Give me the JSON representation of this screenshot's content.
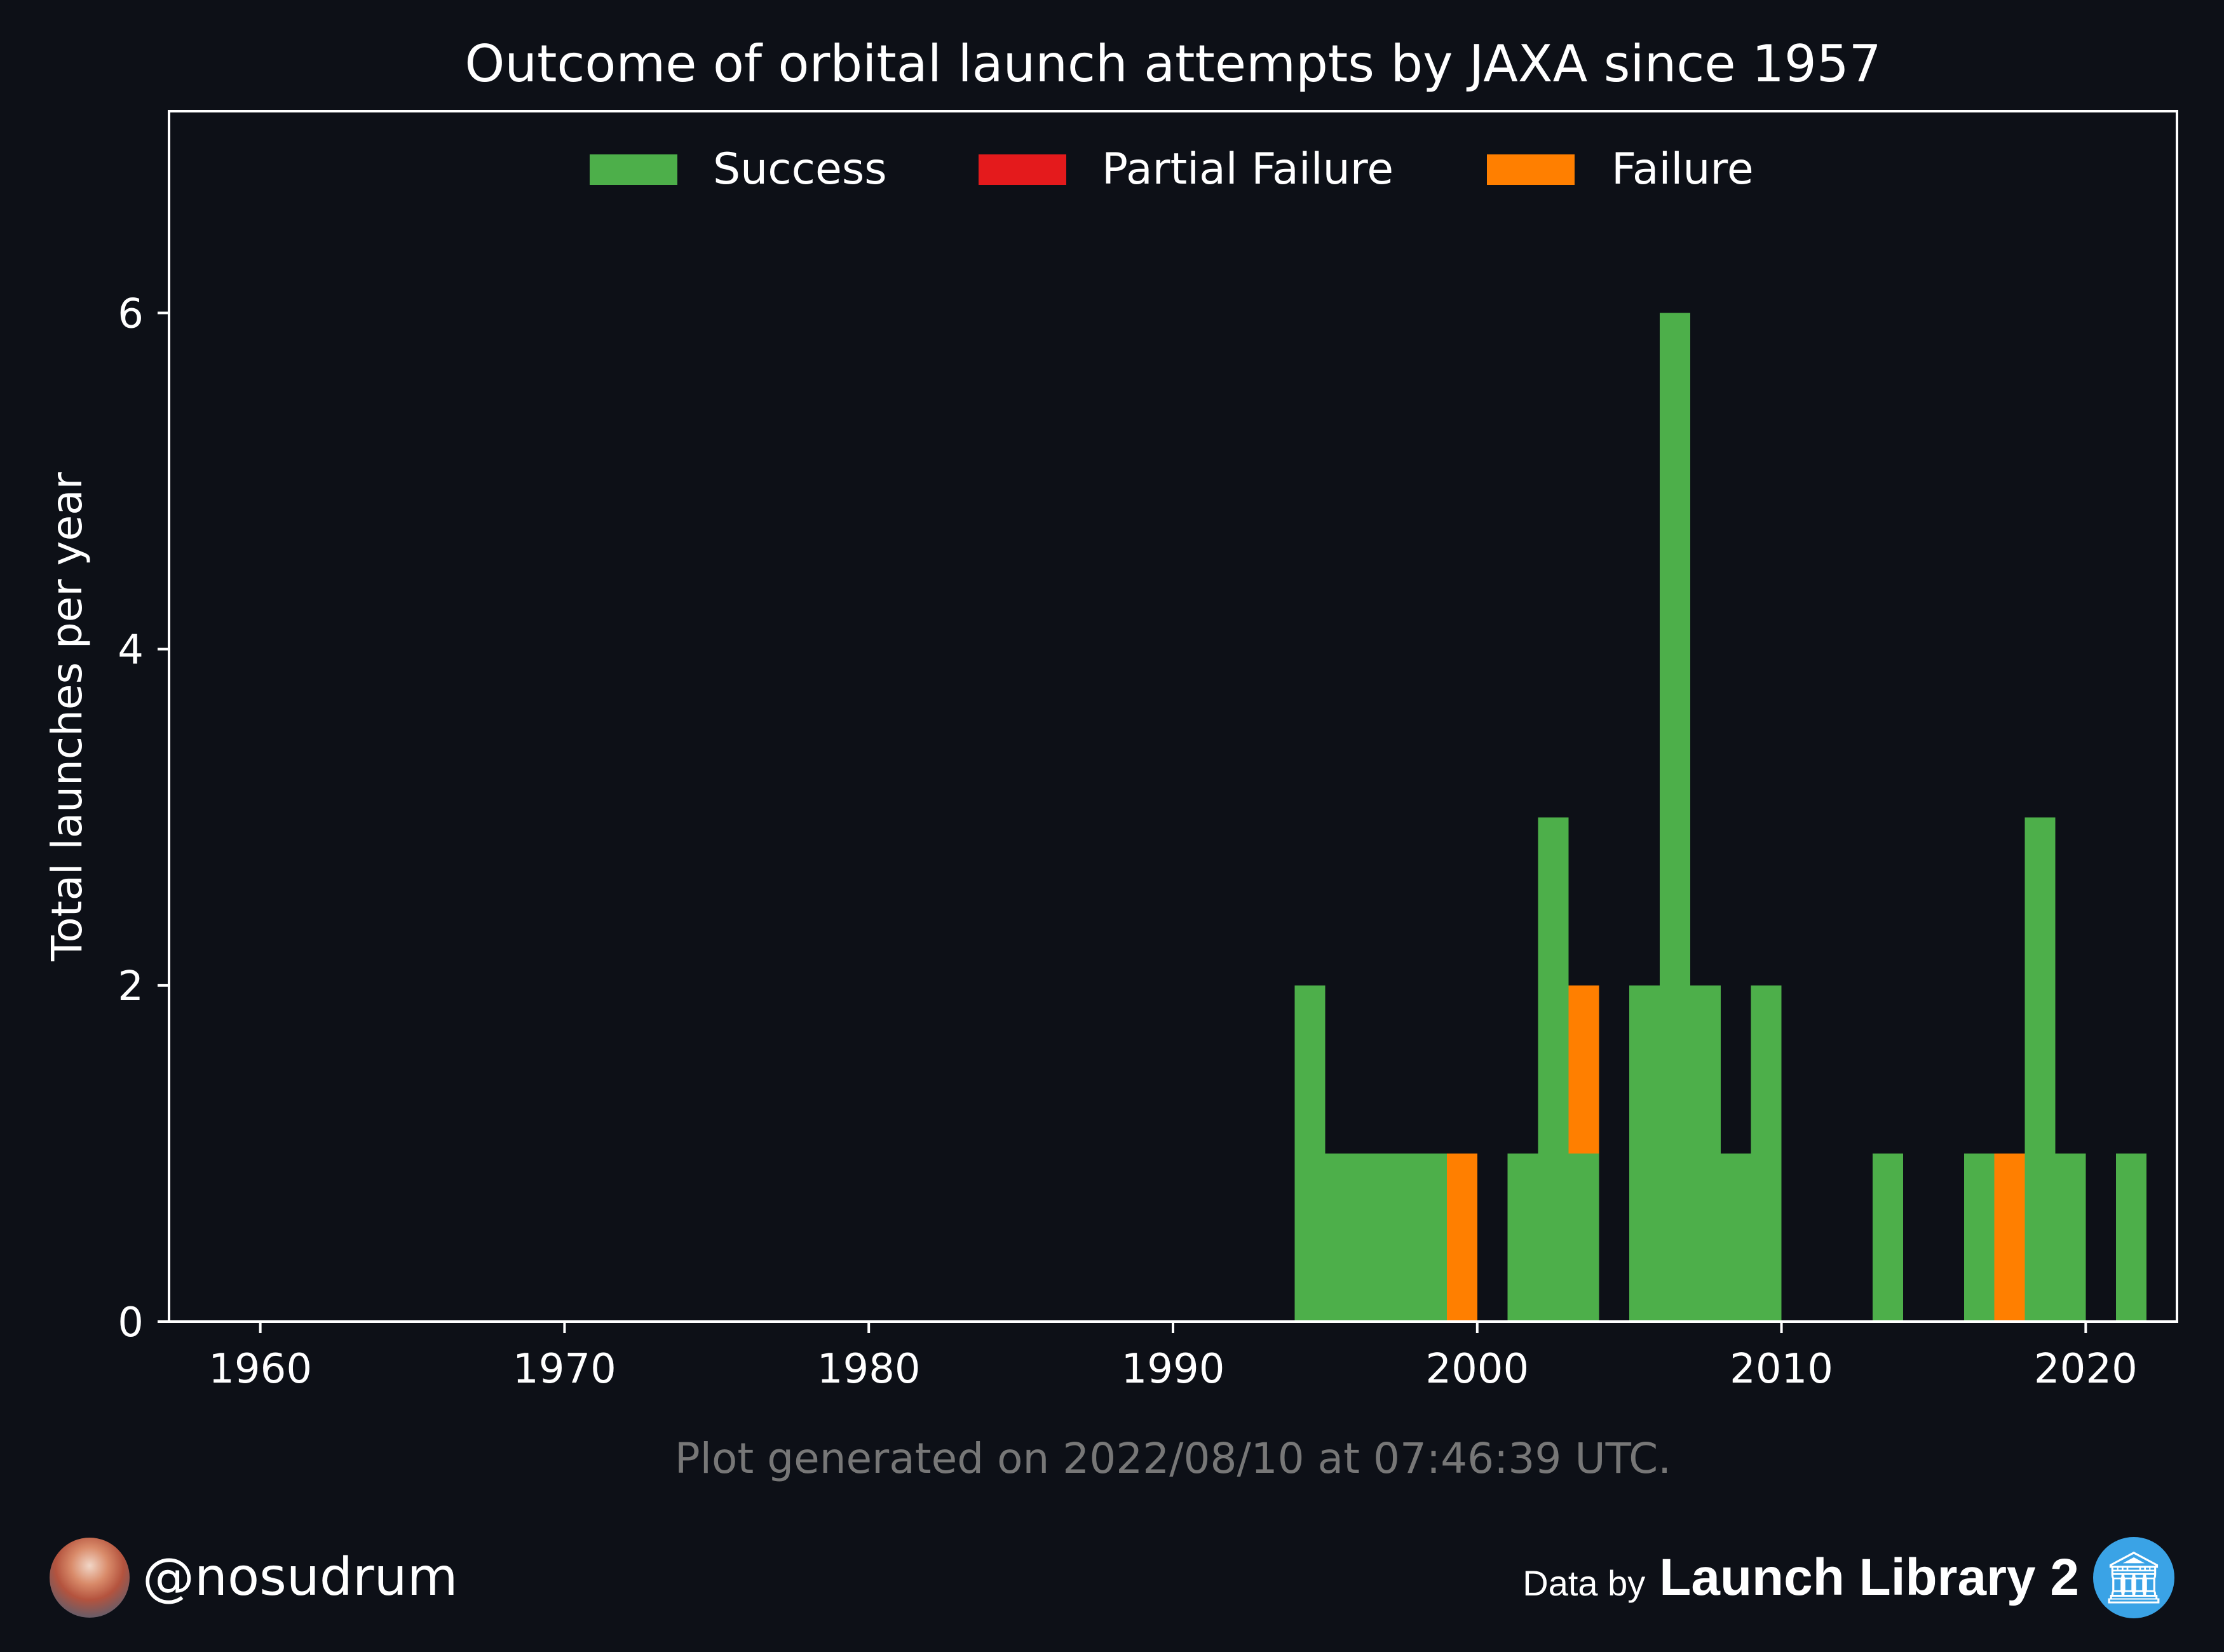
{
  "chart_data": {
    "type": "bar",
    "stacked": true,
    "title": "Outcome of orbital launch attempts by JAXA since 1957",
    "xlabel": "",
    "ylabel": "Total launches per year",
    "xlim": [
      1957,
      2023
    ],
    "ylim": [
      0,
      7.2
    ],
    "x_ticks": [
      1960,
      1970,
      1980,
      1990,
      2000,
      2010,
      2020
    ],
    "y_ticks": [
      0,
      2,
      4,
      6
    ],
    "legend": {
      "position": "top-center",
      "columns": 3
    },
    "grid": false,
    "x": [
      1994,
      1995,
      1996,
      1997,
      1998,
      1999,
      2001,
      2002,
      2003,
      2005,
      2006,
      2007,
      2008,
      2009,
      2013,
      2016,
      2017,
      2018,
      2019,
      2021
    ],
    "series": [
      {
        "name": "Success",
        "color": "#4daf4a",
        "values": [
          2,
          1,
          1,
          1,
          1,
          0,
          1,
          3,
          1,
          2,
          6,
          2,
          1,
          2,
          1,
          1,
          0,
          3,
          1,
          1
        ]
      },
      {
        "name": "Partial Failure",
        "color": "#e41a1c",
        "values": [
          0,
          0,
          0,
          0,
          0,
          0,
          0,
          0,
          0,
          0,
          0,
          0,
          0,
          0,
          0,
          0,
          0,
          0,
          0,
          0
        ]
      },
      {
        "name": "Failure",
        "color": "#ff7f00",
        "values": [
          0,
          0,
          0,
          0,
          0,
          1,
          0,
          0,
          1,
          0,
          0,
          0,
          0,
          0,
          0,
          0,
          1,
          0,
          0,
          0
        ]
      }
    ],
    "note": "Plot generated on 2022/08/10 at 07:46:39 UTC."
  },
  "footer": {
    "handle": "@nosudrum",
    "data_by": "Data by",
    "source": "Launch Library 2",
    "avatar_icon": "avatar-photo",
    "source_icon": "library-icon"
  },
  "colors": {
    "background": "#0d1017",
    "axes": "#ffffff",
    "note": "#777777"
  }
}
